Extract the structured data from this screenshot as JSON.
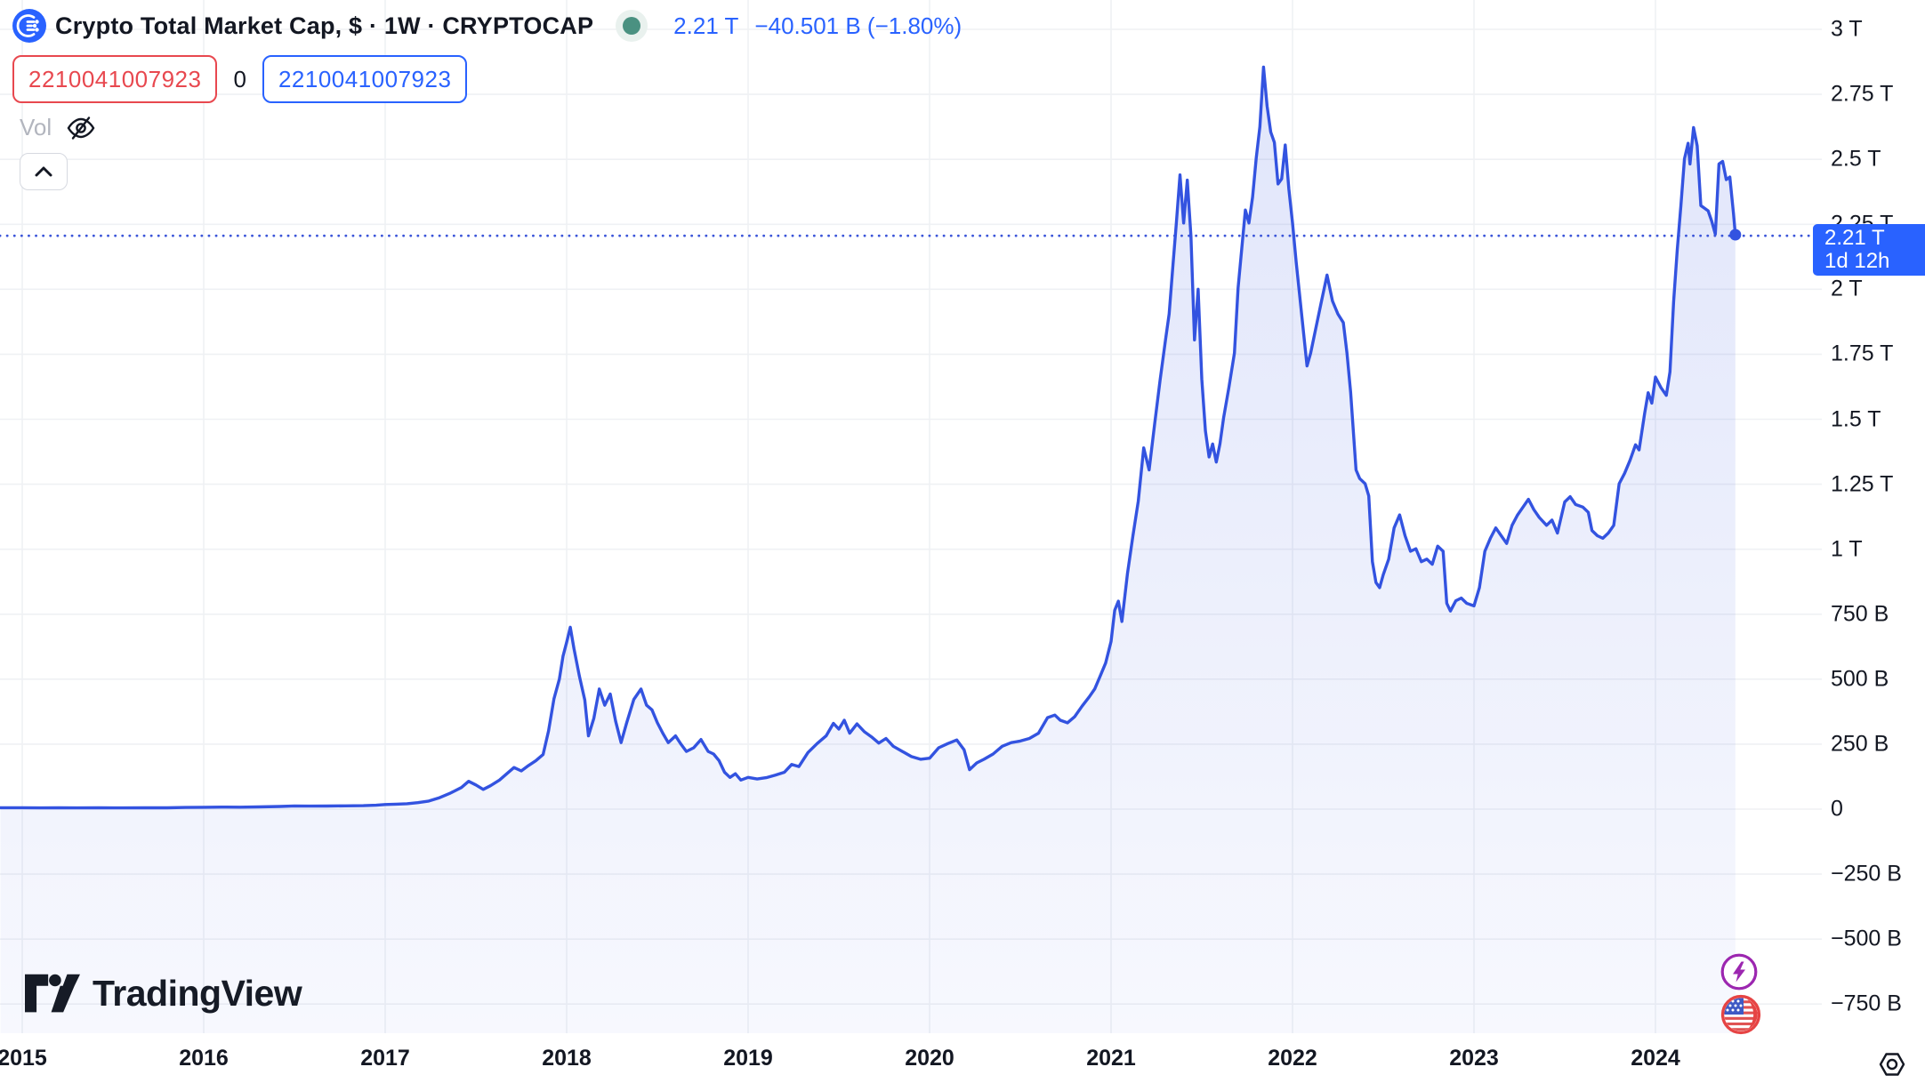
{
  "header": {
    "symbol_title": "Crypto Total Market Cap, $ · 1W · CRYPTOCAP",
    "last_value": "2.21 T",
    "change": "−40.501 B (−1.80%)",
    "values_row": {
      "left": "2210041007923",
      "mid": "0",
      "right": "2210041007923"
    },
    "vol_label": "Vol",
    "icons": {
      "symbol_logo": "cryptocap-circuit-logo",
      "status": "market-status-dot",
      "volume_visibility": "eye-off-icon",
      "collapse": "chevron-up-icon"
    }
  },
  "price_label": {
    "value": "2.21 T",
    "countdown": "1d 12h",
    "bg": "#2962ff"
  },
  "y_axis": {
    "labels": [
      {
        "text": "3 T",
        "value": 3000
      },
      {
        "text": "2.75 T",
        "value": 2750
      },
      {
        "text": "2.5 T",
        "value": 2500
      },
      {
        "text": "2.25 T",
        "value": 2250
      },
      {
        "text": "2 T",
        "value": 2000
      },
      {
        "text": "1.75 T",
        "value": 1750
      },
      {
        "text": "1.5 T",
        "value": 1500
      },
      {
        "text": "1.25 T",
        "value": 1250
      },
      {
        "text": "1 T",
        "value": 1000
      },
      {
        "text": "750 B",
        "value": 750
      },
      {
        "text": "500 B",
        "value": 500
      },
      {
        "text": "250 B",
        "value": 250
      },
      {
        "text": "0",
        "value": 0
      },
      {
        "text": "−250 B",
        "value": -250
      },
      {
        "text": "−500 B",
        "value": -500
      },
      {
        "text": "−750 B",
        "value": -750
      }
    ]
  },
  "x_axis": {
    "labels": [
      {
        "text": "2015",
        "year": 2015
      },
      {
        "text": "2016",
        "year": 2016
      },
      {
        "text": "2017",
        "year": 2017
      },
      {
        "text": "2018",
        "year": 2018
      },
      {
        "text": "2019",
        "year": 2019
      },
      {
        "text": "2020",
        "year": 2020
      },
      {
        "text": "2021",
        "year": 2021
      },
      {
        "text": "2022",
        "year": 2022
      },
      {
        "text": "2023",
        "year": 2023
      },
      {
        "text": "2024",
        "year": 2024
      }
    ]
  },
  "watermark": {
    "text": "TradingView"
  },
  "corner_icons": {
    "lightning": "lightning-circle-icon",
    "flag": "us-flag-icon",
    "settings": "gear-icon"
  },
  "colors": {
    "accent_blue": "#2962ff",
    "line_blue": "#3353e0",
    "red": "#e8484f",
    "text": "#131722",
    "muted_gray": "#b2b5be",
    "status_green": "#4a9181",
    "purple": "#9c27b0",
    "flag_red": "#e64444",
    "grid": "#eff1f4"
  },
  "chart_data": {
    "type": "area",
    "title": "Crypto Total Market Cap, $ · 1W · CRYPTOCAP",
    "symbol": "CRYPTOCAP",
    "timeframe": "1W",
    "units": "USD, billions",
    "last_value_billions": 2210,
    "last_value_label": "2.21 T",
    "change_label": "−40.501 B (−1.80%)",
    "baseline_value_billions": 2206,
    "x_range_years": [
      2014.88,
      2025.0
    ],
    "y_axis_range_billions": [
      -862,
      3113
    ],
    "grid": true,
    "series": [
      {
        "name": "Total Crypto Market Cap ($B)",
        "points": [
          [
            2014.88,
            5.6
          ],
          [
            2015.0,
            5.4
          ],
          [
            2015.1,
            4.9
          ],
          [
            2015.2,
            5.3
          ],
          [
            2015.3,
            4.7
          ],
          [
            2015.42,
            5.2
          ],
          [
            2015.55,
            4.9
          ],
          [
            2015.68,
            5.3
          ],
          [
            2015.8,
            5.1
          ],
          [
            2015.9,
            6.5
          ],
          [
            2016.0,
            7.2
          ],
          [
            2016.1,
            7.9
          ],
          [
            2016.2,
            7.5
          ],
          [
            2016.3,
            8.6
          ],
          [
            2016.42,
            10.4
          ],
          [
            2016.5,
            12.2
          ],
          [
            2016.58,
            11.5
          ],
          [
            2016.68,
            12.1
          ],
          [
            2016.78,
            12.6
          ],
          [
            2016.88,
            13.4
          ],
          [
            2016.95,
            15.2
          ],
          [
            2017.0,
            17.7
          ],
          [
            2017.06,
            19
          ],
          [
            2017.12,
            21
          ],
          [
            2017.18,
            25
          ],
          [
            2017.24,
            31
          ],
          [
            2017.3,
            44
          ],
          [
            2017.36,
            62
          ],
          [
            2017.42,
            83
          ],
          [
            2017.46,
            107
          ],
          [
            2017.5,
            93
          ],
          [
            2017.54,
            76
          ],
          [
            2017.58,
            90
          ],
          [
            2017.63,
            112
          ],
          [
            2017.67,
            136
          ],
          [
            2017.71,
            160
          ],
          [
            2017.75,
            147
          ],
          [
            2017.79,
            168
          ],
          [
            2017.83,
            186
          ],
          [
            2017.87,
            210
          ],
          [
            2017.9,
            300
          ],
          [
            2017.93,
            424
          ],
          [
            2017.96,
            500
          ],
          [
            2017.98,
            588
          ],
          [
            2018.0,
            642
          ],
          [
            2018.02,
            700
          ],
          [
            2018.04,
            618
          ],
          [
            2018.07,
            512
          ],
          [
            2018.1,
            420
          ],
          [
            2018.12,
            282
          ],
          [
            2018.15,
            350
          ],
          [
            2018.18,
            462
          ],
          [
            2018.21,
            400
          ],
          [
            2018.24,
            443
          ],
          [
            2018.27,
            338
          ],
          [
            2018.3,
            256
          ],
          [
            2018.33,
            330
          ],
          [
            2018.37,
            422
          ],
          [
            2018.41,
            462
          ],
          [
            2018.44,
            400
          ],
          [
            2018.47,
            382
          ],
          [
            2018.5,
            332
          ],
          [
            2018.53,
            292
          ],
          [
            2018.56,
            256
          ],
          [
            2018.6,
            282
          ],
          [
            2018.63,
            250
          ],
          [
            2018.66,
            222
          ],
          [
            2018.7,
            236
          ],
          [
            2018.74,
            268
          ],
          [
            2018.78,
            222
          ],
          [
            2018.81,
            212
          ],
          [
            2018.84,
            186
          ],
          [
            2018.87,
            142
          ],
          [
            2018.9,
            122
          ],
          [
            2018.93,
            136
          ],
          [
            2018.96,
            112
          ],
          [
            2019.0,
            122
          ],
          [
            2019.05,
            116
          ],
          [
            2019.1,
            121
          ],
          [
            2019.15,
            131
          ],
          [
            2019.2,
            142
          ],
          [
            2019.24,
            172
          ],
          [
            2019.28,
            164
          ],
          [
            2019.33,
            218
          ],
          [
            2019.38,
            252
          ],
          [
            2019.43,
            282
          ],
          [
            2019.47,
            330
          ],
          [
            2019.5,
            308
          ],
          [
            2019.53,
            342
          ],
          [
            2019.56,
            292
          ],
          [
            2019.6,
            328
          ],
          [
            2019.64,
            298
          ],
          [
            2019.68,
            278
          ],
          [
            2019.72,
            254
          ],
          [
            2019.76,
            272
          ],
          [
            2019.8,
            242
          ],
          [
            2019.85,
            222
          ],
          [
            2019.9,
            202
          ],
          [
            2019.95,
            192
          ],
          [
            2020.0,
            196
          ],
          [
            2020.05,
            236
          ],
          [
            2020.1,
            252
          ],
          [
            2020.15,
            266
          ],
          [
            2020.19,
            228
          ],
          [
            2020.22,
            152
          ],
          [
            2020.26,
            178
          ],
          [
            2020.3,
            192
          ],
          [
            2020.35,
            212
          ],
          [
            2020.4,
            242
          ],
          [
            2020.45,
            256
          ],
          [
            2020.5,
            262
          ],
          [
            2020.55,
            272
          ],
          [
            2020.6,
            292
          ],
          [
            2020.65,
            352
          ],
          [
            2020.69,
            362
          ],
          [
            2020.72,
            342
          ],
          [
            2020.76,
            332
          ],
          [
            2020.8,
            356
          ],
          [
            2020.84,
            396
          ],
          [
            2020.88,
            432
          ],
          [
            2020.91,
            462
          ],
          [
            2020.94,
            512
          ],
          [
            2020.97,
            562
          ],
          [
            2021.0,
            645
          ],
          [
            2021.02,
            765
          ],
          [
            2021.04,
            800
          ],
          [
            2021.06,
            722
          ],
          [
            2021.09,
            905
          ],
          [
            2021.12,
            1050
          ],
          [
            2021.15,
            1185
          ],
          [
            2021.18,
            1390
          ],
          [
            2021.21,
            1305
          ],
          [
            2021.24,
            1482
          ],
          [
            2021.27,
            1650
          ],
          [
            2021.3,
            1805
          ],
          [
            2021.32,
            1905
          ],
          [
            2021.34,
            2085
          ],
          [
            2021.36,
            2255
          ],
          [
            2021.38,
            2440
          ],
          [
            2021.4,
            2255
          ],
          [
            2021.42,
            2420
          ],
          [
            2021.44,
            2205
          ],
          [
            2021.46,
            1805
          ],
          [
            2021.48,
            2000
          ],
          [
            2021.5,
            1655
          ],
          [
            2021.52,
            1455
          ],
          [
            2021.54,
            1355
          ],
          [
            2021.56,
            1405
          ],
          [
            2021.58,
            1335
          ],
          [
            2021.6,
            1405
          ],
          [
            2021.62,
            1505
          ],
          [
            2021.65,
            1625
          ],
          [
            2021.68,
            1755
          ],
          [
            2021.7,
            2005
          ],
          [
            2021.72,
            2155
          ],
          [
            2021.74,
            2305
          ],
          [
            2021.76,
            2255
          ],
          [
            2021.78,
            2355
          ],
          [
            2021.8,
            2505
          ],
          [
            2021.82,
            2625
          ],
          [
            2021.84,
            2855
          ],
          [
            2021.86,
            2705
          ],
          [
            2021.88,
            2605
          ],
          [
            2021.9,
            2565
          ],
          [
            2021.92,
            2405
          ],
          [
            2021.94,
            2425
          ],
          [
            2021.96,
            2555
          ],
          [
            2021.98,
            2385
          ],
          [
            2022.0,
            2255
          ],
          [
            2022.02,
            2105
          ],
          [
            2022.05,
            1905
          ],
          [
            2022.08,
            1705
          ],
          [
            2022.1,
            1755
          ],
          [
            2022.13,
            1855
          ],
          [
            2022.16,
            1955
          ],
          [
            2022.19,
            2055
          ],
          [
            2022.22,
            1955
          ],
          [
            2022.25,
            1905
          ],
          [
            2022.28,
            1872
          ],
          [
            2022.3,
            1755
          ],
          [
            2022.32,
            1605
          ],
          [
            2022.35,
            1305
          ],
          [
            2022.37,
            1272
          ],
          [
            2022.4,
            1252
          ],
          [
            2022.42,
            1205
          ],
          [
            2022.44,
            952
          ],
          [
            2022.46,
            872
          ],
          [
            2022.48,
            852
          ],
          [
            2022.5,
            902
          ],
          [
            2022.53,
            962
          ],
          [
            2022.56,
            1082
          ],
          [
            2022.59,
            1132
          ],
          [
            2022.62,
            1052
          ],
          [
            2022.65,
            992
          ],
          [
            2022.68,
            1002
          ],
          [
            2022.71,
            952
          ],
          [
            2022.74,
            962
          ],
          [
            2022.77,
            942
          ],
          [
            2022.8,
            1012
          ],
          [
            2022.83,
            992
          ],
          [
            2022.85,
            792
          ],
          [
            2022.87,
            762
          ],
          [
            2022.9,
            802
          ],
          [
            2022.93,
            812
          ],
          [
            2022.96,
            792
          ],
          [
            2023.0,
            782
          ],
          [
            2023.03,
            852
          ],
          [
            2023.06,
            992
          ],
          [
            2023.09,
            1042
          ],
          [
            2023.12,
            1082
          ],
          [
            2023.15,
            1052
          ],
          [
            2023.18,
            1022
          ],
          [
            2023.21,
            1092
          ],
          [
            2023.24,
            1132
          ],
          [
            2023.27,
            1162
          ],
          [
            2023.3,
            1192
          ],
          [
            2023.33,
            1152
          ],
          [
            2023.36,
            1122
          ],
          [
            2023.4,
            1092
          ],
          [
            2023.43,
            1112
          ],
          [
            2023.46,
            1062
          ],
          [
            2023.5,
            1182
          ],
          [
            2023.53,
            1202
          ],
          [
            2023.56,
            1172
          ],
          [
            2023.6,
            1162
          ],
          [
            2023.63,
            1142
          ],
          [
            2023.65,
            1072
          ],
          [
            2023.68,
            1052
          ],
          [
            2023.71,
            1042
          ],
          [
            2023.74,
            1062
          ],
          [
            2023.77,
            1092
          ],
          [
            2023.8,
            1252
          ],
          [
            2023.83,
            1292
          ],
          [
            2023.86,
            1342
          ],
          [
            2023.89,
            1402
          ],
          [
            2023.91,
            1382
          ],
          [
            2023.94,
            1522
          ],
          [
            2023.96,
            1602
          ],
          [
            2023.98,
            1562
          ],
          [
            2024.0,
            1662
          ],
          [
            2024.03,
            1622
          ],
          [
            2024.06,
            1592
          ],
          [
            2024.08,
            1682
          ],
          [
            2024.1,
            1952
          ],
          [
            2024.12,
            2152
          ],
          [
            2024.14,
            2322
          ],
          [
            2024.16,
            2502
          ],
          [
            2024.18,
            2562
          ],
          [
            2024.19,
            2482
          ],
          [
            2024.21,
            2622
          ],
          [
            2024.23,
            2552
          ],
          [
            2024.25,
            2322
          ],
          [
            2024.27,
            2312
          ],
          [
            2024.29,
            2302
          ],
          [
            2024.31,
            2262
          ],
          [
            2024.33,
            2212
          ],
          [
            2024.35,
            2482
          ],
          [
            2024.37,
            2492
          ],
          [
            2024.39,
            2422
          ],
          [
            2024.41,
            2432
          ],
          [
            2024.43,
            2292
          ],
          [
            2024.44,
            2210
          ]
        ]
      }
    ]
  }
}
